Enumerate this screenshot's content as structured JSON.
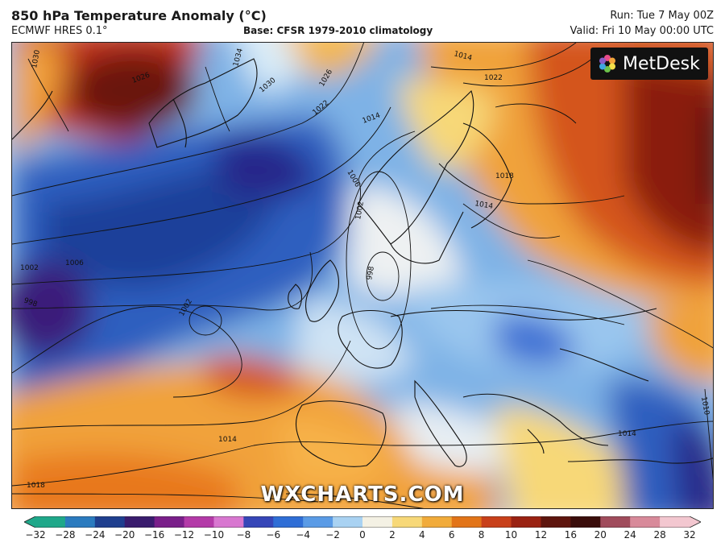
{
  "header": {
    "title": "850 hPa Temperature Anomaly (°C)",
    "model": "ECMWF HRES 0.1°",
    "base": "Base: CFSR 1979-2010 climatology",
    "run": "Run: Tue 7 May 00Z",
    "valid": "Valid: Fri 10 May 00:00 UTC"
  },
  "logo": {
    "text": "MetDesk",
    "icon": "pinwheel-logo-icon"
  },
  "watermark": "WXCHARTS.COM",
  "colorbar": {
    "ticks": [
      "−32",
      "−28",
      "−24",
      "−20",
      "−16",
      "−12",
      "−10",
      "−8",
      "−6",
      "−4",
      "−2",
      "0",
      "2",
      "4",
      "6",
      "8",
      "10",
      "12",
      "16",
      "20",
      "24",
      "28",
      "32"
    ],
    "colors": [
      "#1fa88a",
      "#2b7bbf",
      "#1f3f8f",
      "#3a1c6e",
      "#7a1f8a",
      "#b43aa8",
      "#d877d0",
      "#3646b8",
      "#2f6ed6",
      "#5a9be6",
      "#a9d2f2",
      "#f4f1e4",
      "#f7d878",
      "#f1ab3a",
      "#e27418",
      "#c8401a",
      "#9a2212",
      "#5e150e",
      "#3a0d0b",
      "#a04c5c",
      "#d88a9a",
      "#f3c7d0"
    ]
  },
  "isobar_labels": [
    "1030",
    "1026",
    "1034",
    "1030",
    "1026",
    "1014",
    "1022",
    "1022",
    "1014",
    "1018",
    "1014",
    "1006",
    "1002",
    "998",
    "1002",
    "1006",
    "1002",
    "998",
    "1014",
    "1014",
    "1018",
    "1010"
  ]
}
